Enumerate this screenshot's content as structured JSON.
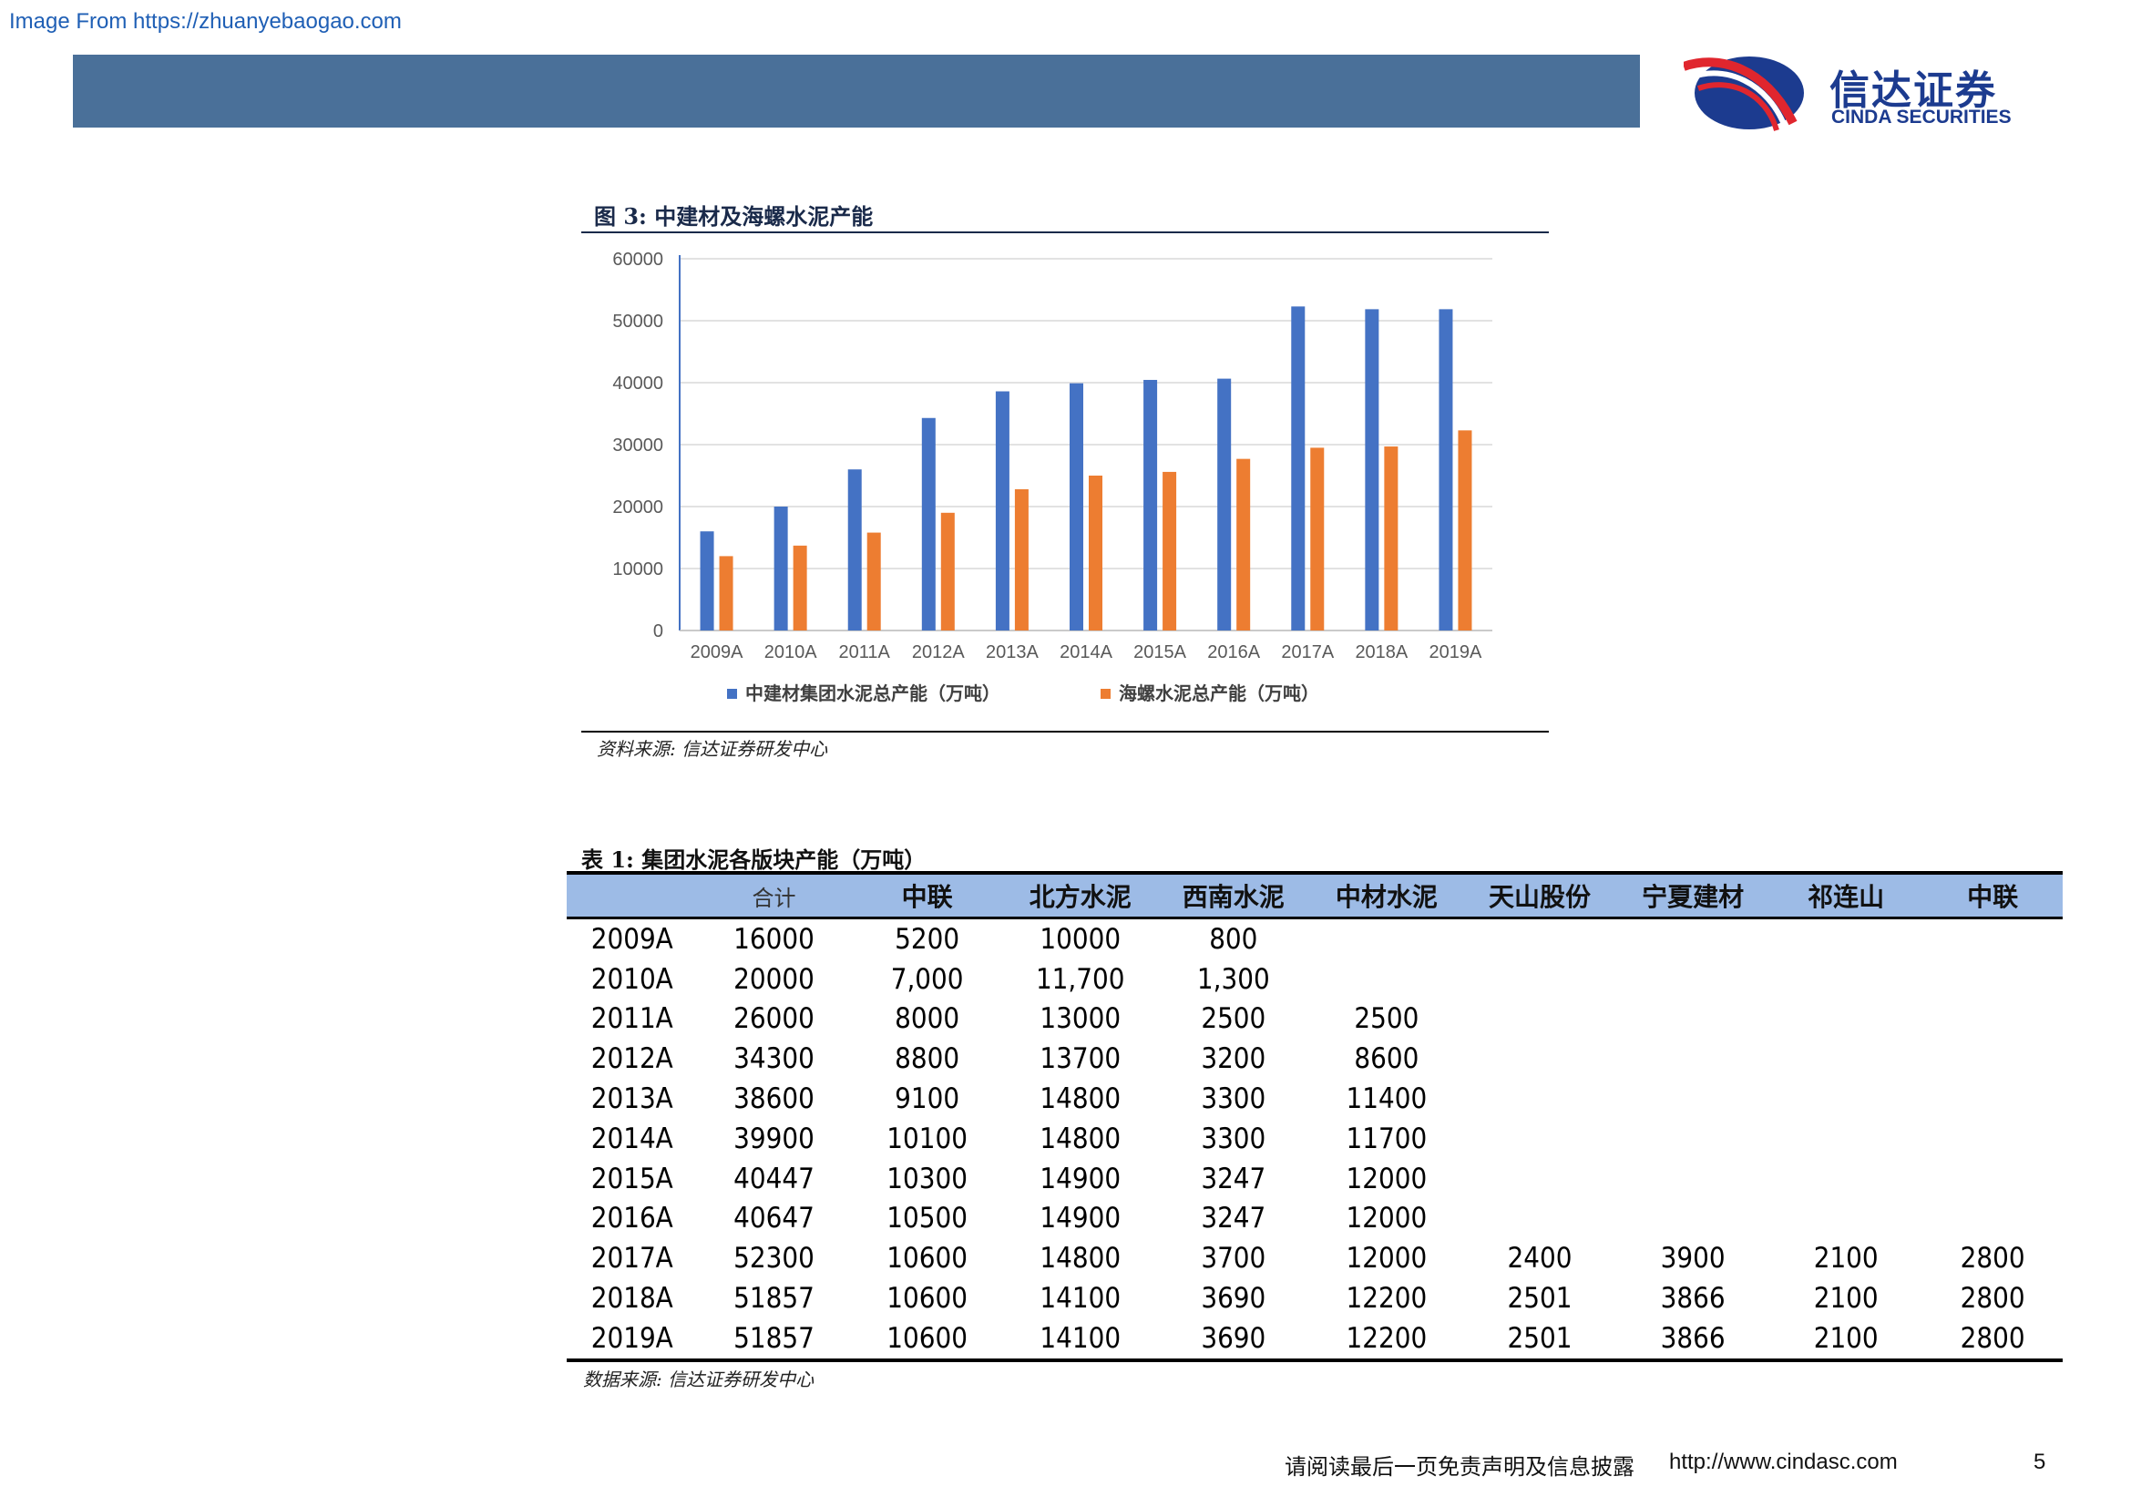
{
  "watermark": "Image From https://zhuanyebaogao.com",
  "logo": {
    "cn": "信达证券",
    "en": "CINDA SECURITIES",
    "colors": {
      "primary": "#1c3b8f",
      "accent": "#e0262e"
    }
  },
  "figure": {
    "title": "图 3:  中建材及海螺水泥产能",
    "source": "资料来源:  信达证券研发中心"
  },
  "chart_data": {
    "type": "bar",
    "title": "",
    "xlabel": "",
    "ylabel": "",
    "categories": [
      "2009A",
      "2010A",
      "2011A",
      "2012A",
      "2013A",
      "2014A",
      "2015A",
      "2016A",
      "2017A",
      "2018A",
      "2019A"
    ],
    "series": [
      {
        "name": "中建材集团水泥总产能（万吨）",
        "color": "#4472c4",
        "values": [
          16000,
          20000,
          26000,
          34300,
          38600,
          39900,
          40447,
          40647,
          52300,
          51857,
          51857
        ]
      },
      {
        "name": "海螺水泥总产能（万吨）",
        "color": "#ed7d31",
        "values": [
          12000,
          13700,
          15800,
          19000,
          22800,
          25000,
          25600,
          27700,
          29500,
          29700,
          32300
        ]
      }
    ],
    "ylim": [
      0,
      60000
    ],
    "yticks": [
      0,
      10000,
      20000,
      30000,
      40000,
      50000,
      60000
    ],
    "grid": true,
    "legend": "bottom"
  },
  "table": {
    "title": "表 1:  集团水泥各版块产能（万吨）",
    "headers": [
      "",
      "合计",
      "中联",
      "北方水泥",
      "西南水泥",
      "中材水泥",
      "天山股份",
      "宁夏建材",
      "祁连山",
      "中联"
    ],
    "rows": [
      [
        "2009A",
        "16000",
        "5200",
        "10000",
        "800",
        "",
        "",
        "",
        "",
        ""
      ],
      [
        "2010A",
        "20000",
        "7,000",
        "11,700",
        "1,300",
        "",
        "",
        "",
        "",
        ""
      ],
      [
        "2011A",
        "26000",
        "8000",
        "13000",
        "2500",
        "2500",
        "",
        "",
        "",
        ""
      ],
      [
        "2012A",
        "34300",
        "8800",
        "13700",
        "3200",
        "8600",
        "",
        "",
        "",
        ""
      ],
      [
        "2013A",
        "38600",
        "9100",
        "14800",
        "3300",
        "11400",
        "",
        "",
        "",
        ""
      ],
      [
        "2014A",
        "39900",
        "10100",
        "14800",
        "3300",
        "11700",
        "",
        "",
        "",
        ""
      ],
      [
        "2015A",
        "40447",
        "10300",
        "14900",
        "3247",
        "12000",
        "",
        "",
        "",
        ""
      ],
      [
        "2016A",
        "40647",
        "10500",
        "14900",
        "3247",
        "12000",
        "",
        "",
        "",
        ""
      ],
      [
        "2017A",
        "52300",
        "10600",
        "14800",
        "3700",
        "12000",
        "2400",
        "3900",
        "2100",
        "2800"
      ],
      [
        "2018A",
        "51857",
        "10600",
        "14100",
        "3690",
        "12200",
        "2501",
        "3866",
        "2100",
        "2800"
      ],
      [
        "2019A",
        "51857",
        "10600",
        "14100",
        "3690",
        "12200",
        "2501",
        "3866",
        "2100",
        "2800"
      ]
    ],
    "source": "数据来源:  信达证券研发中心"
  },
  "footer": {
    "note": "请阅读最后一页免责声明及信息披露",
    "url": "http://www.cindasc.com",
    "page": "5"
  },
  "colors": {
    "header_bar": "#4a7099",
    "table_header": "#9dbbe6"
  }
}
